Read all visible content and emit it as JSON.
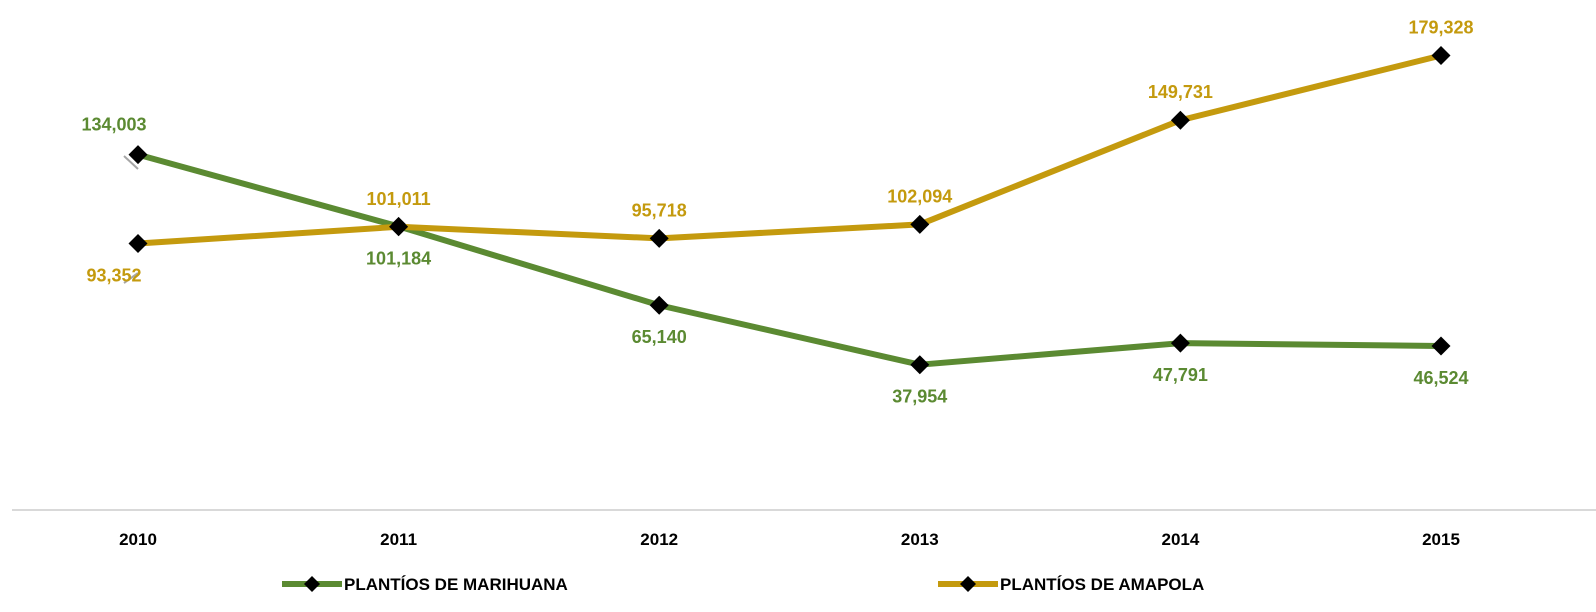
{
  "chart_data": {
    "type": "line",
    "categories": [
      "2010",
      "2011",
      "2012",
      "2013",
      "2014",
      "2015"
    ],
    "series": [
      {
        "name": "PLANTÍOS DE MARIHUANA",
        "values": [
          134003,
          101184,
          65140,
          37954,
          47791,
          46524
        ],
        "labels": [
          "134,003",
          "101,184",
          "65,140",
          "37,954",
          "47,791",
          "46,524"
        ],
        "label_side": [
          "above",
          "below",
          "below",
          "below",
          "below",
          "below"
        ],
        "color": "#5b8a32"
      },
      {
        "name": "PLANTÍOS DE AMAPOLA",
        "values": [
          93352,
          101011,
          95718,
          102094,
          149731,
          179328
        ],
        "labels": [
          "93,352",
          "101,011",
          "95,718",
          "102,094",
          "149,731",
          "179,328"
        ],
        "label_side": [
          "below",
          "above",
          "above",
          "above",
          "above",
          "above"
        ],
        "color": "#c49a0e"
      }
    ],
    "marker": "diamond",
    "marker_color": "#000000",
    "grid": false,
    "legend": "bottom"
  }
}
